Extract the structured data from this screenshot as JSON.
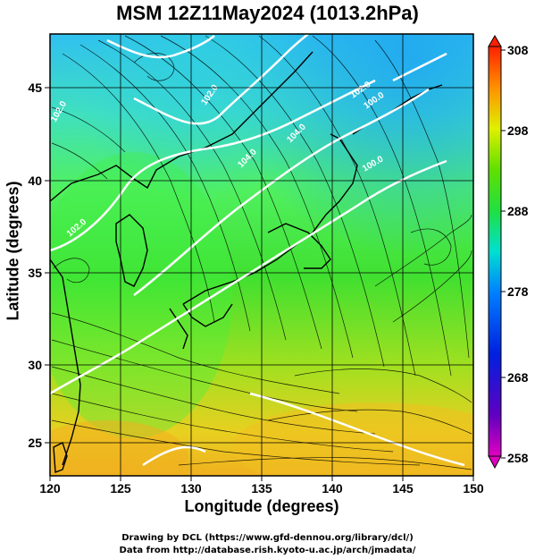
{
  "title": "MSM 12Z11May2024 (1013.2hPa)",
  "map": {
    "xlabel": "Longitude (degrees)",
    "ylabel": "Latitude  (degrees)",
    "x_range": [
      120,
      150
    ],
    "y_range": [
      22.5,
      48
    ],
    "x_ticks": [
      "120",
      "125",
      "130",
      "135",
      "140",
      "145",
      "150"
    ],
    "y_ticks": [
      "25",
      "30",
      "35",
      "40",
      "45"
    ],
    "grid": true,
    "contour_labels": [
      "102.0",
      "104.0",
      "104.0",
      "102.0",
      "100.0",
      "102.0",
      "100.0",
      "102.0"
    ]
  },
  "colorbar": {
    "labels": [
      "308",
      "298",
      "288",
      "278",
      "268",
      "258"
    ],
    "range": [
      258,
      308
    ],
    "colors": [
      "#e000c0",
      "#3000d0",
      "#0050ff",
      "#00d8e0",
      "#00f060",
      "#40e000",
      "#f0f000",
      "#ffa000",
      "#ff2000"
    ]
  },
  "credits": {
    "line1": "Drawing by DCL (https://www.gfd-dennou.org/library/dcl/)",
    "line2": "Data from http://database.rish.kyoto-u.ac.jp/arch/jmadata/"
  }
}
